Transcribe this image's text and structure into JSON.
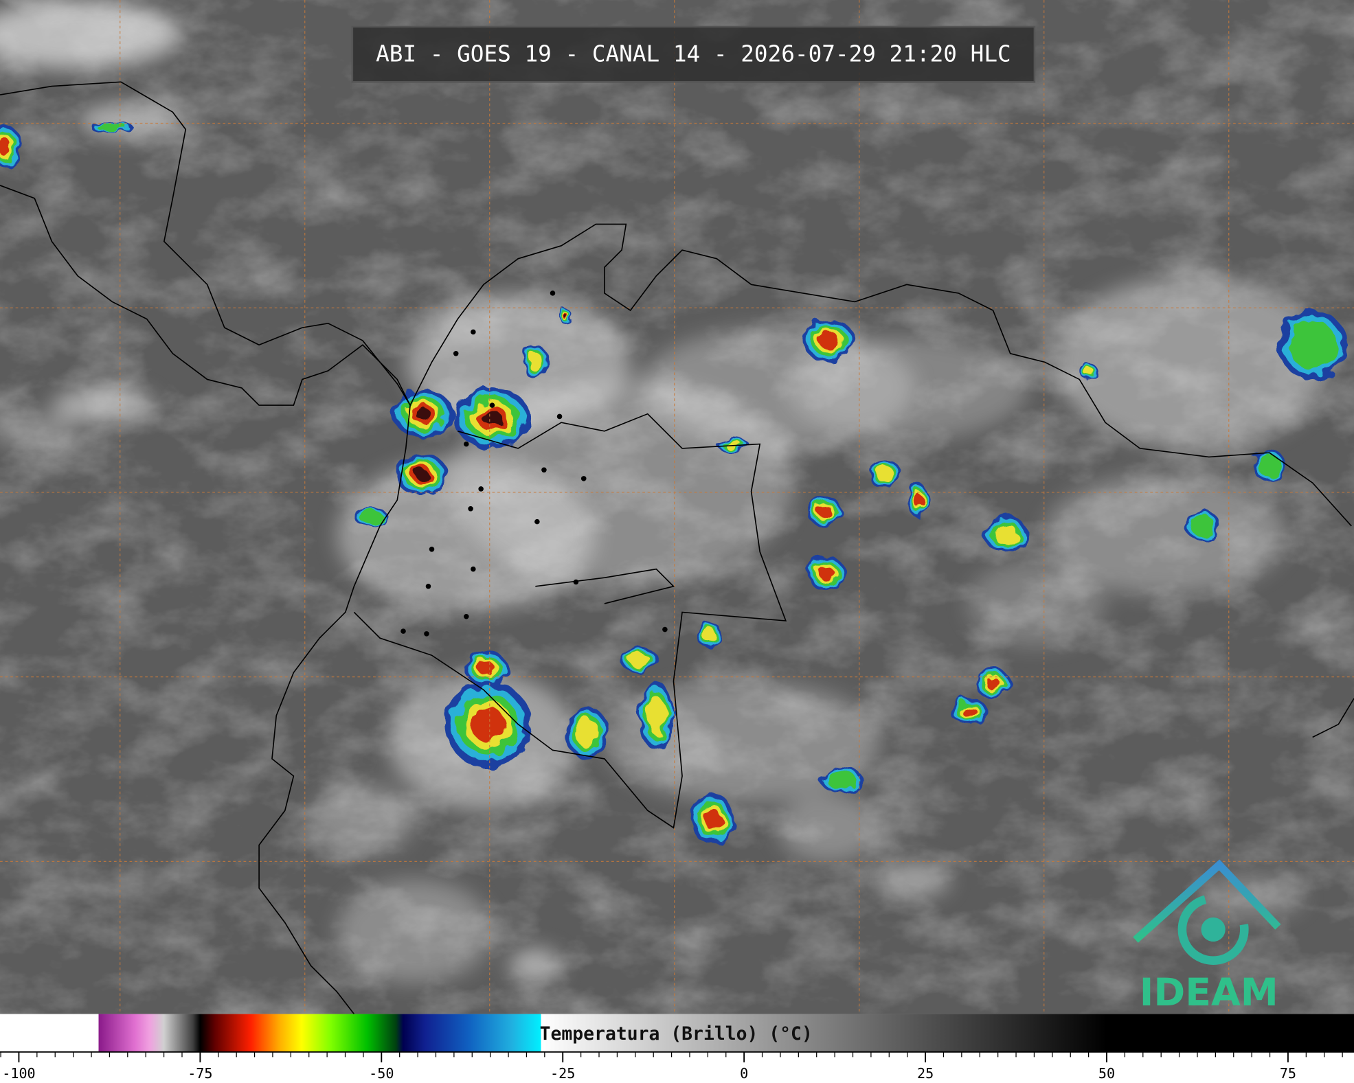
{
  "title": "ABI - GOES 19 - CANAL 14 - 2026-07-29 21:20 HLC",
  "colorbar": {
    "label": "Temperatura (Brillo) (°C)",
    "xlim": [
      -102.6,
      84.1
    ],
    "ticks": [
      -100,
      -75,
      -50,
      -25,
      0,
      25,
      50,
      75
    ],
    "stops": [
      {
        "value": -102.6,
        "color": "#ffffff"
      },
      {
        "value": -89,
        "color": "#ffffff"
      },
      {
        "value": -89,
        "color": "#8a1a8a"
      },
      {
        "value": -84,
        "color": "#e070d0"
      },
      {
        "value": -82,
        "color": "#f0a0e0"
      },
      {
        "value": -80,
        "color": "#d0d0d0"
      },
      {
        "value": -76,
        "color": "#404040"
      },
      {
        "value": -75,
        "color": "#000000"
      },
      {
        "value": -73,
        "color": "#600000"
      },
      {
        "value": -68,
        "color": "#ff2000"
      },
      {
        "value": -64,
        "color": "#ffb000"
      },
      {
        "value": -61,
        "color": "#ffff00"
      },
      {
        "value": -57,
        "color": "#80ff00"
      },
      {
        "value": -52,
        "color": "#00c000"
      },
      {
        "value": -48,
        "color": "#004010"
      },
      {
        "value": -47,
        "color": "#000050"
      },
      {
        "value": -44,
        "color": "#102090"
      },
      {
        "value": -38,
        "color": "#1060c0"
      },
      {
        "value": -32,
        "color": "#20b0e0"
      },
      {
        "value": -28,
        "color": "#00f0ff"
      },
      {
        "value": -28,
        "color": "#ffffff"
      },
      {
        "value": 50,
        "color": "#000000"
      },
      {
        "value": 84.1,
        "color": "#000000"
      }
    ]
  },
  "logo_text": "IDEAM"
}
